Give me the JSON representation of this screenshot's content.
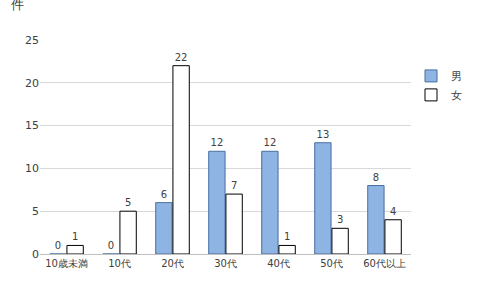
{
  "chart_data": {
    "type": "bar",
    "y_label": "件",
    "categories": [
      "10歳未満",
      "10代",
      "20代",
      "30代",
      "40代",
      "50代",
      "60代以上"
    ],
    "series": [
      {
        "name": "男",
        "color": "#8db4e2",
        "values": [
          0,
          0,
          6,
          12,
          12,
          13,
          8
        ]
      },
      {
        "name": "女",
        "color": "#ffffff",
        "values": [
          1,
          5,
          22,
          7,
          1,
          3,
          4
        ]
      }
    ],
    "ylim": [
      0,
      25
    ],
    "yticks": [
      0,
      5,
      10,
      15,
      20,
      25
    ],
    "grid": true,
    "legend": "right",
    "data_labels": true
  }
}
